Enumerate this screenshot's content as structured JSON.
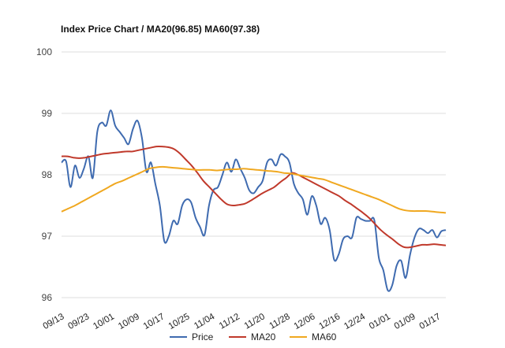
{
  "chart_data": {
    "type": "line",
    "title": "Index Price Chart / MA20(96.85) MA60(97.38)",
    "xlabel": "",
    "ylabel": "",
    "ylim": [
      96,
      100
    ],
    "yticks": [
      96,
      97,
      98,
      99,
      100
    ],
    "grid": true,
    "legend": "bottom",
    "xticks": [
      "09/13",
      "09/23",
      "10/01",
      "10/09",
      "10/17",
      "10/25",
      "11/04",
      "11/12",
      "11/20",
      "11/28",
      "12/06",
      "12/16",
      "12/24",
      "01/01",
      "01/09",
      "01/17"
    ],
    "series": [
      {
        "name": "Price",
        "color": "#3f6bb0",
        "values": [
          98.2,
          98.22,
          97.8,
          98.15,
          97.95,
          98.1,
          98.3,
          97.95,
          98.7,
          98.85,
          98.8,
          99.05,
          98.8,
          98.7,
          98.6,
          98.5,
          98.75,
          98.88,
          98.6,
          98.05,
          98.2,
          97.85,
          97.5,
          96.92,
          97.0,
          97.25,
          97.2,
          97.5,
          97.6,
          97.55,
          97.3,
          97.15,
          97.02,
          97.5,
          97.75,
          97.8,
          98.0,
          98.2,
          98.05,
          98.25,
          98.1,
          97.95,
          97.75,
          97.7,
          97.8,
          97.9,
          98.2,
          98.25,
          98.15,
          98.33,
          98.3,
          98.2,
          97.85,
          97.7,
          97.6,
          97.35,
          97.65,
          97.5,
          97.2,
          97.3,
          97.1,
          96.62,
          96.7,
          96.95,
          97.0,
          96.98,
          97.3,
          97.28,
          97.25,
          97.25,
          97.26,
          96.65,
          96.45,
          96.12,
          96.2,
          96.52,
          96.6,
          96.32,
          96.7,
          96.98,
          97.12,
          97.1,
          97.05,
          97.1,
          96.98,
          97.08,
          97.1
        ]
      },
      {
        "name": "MA20",
        "color": "#c0392b",
        "values": [
          98.3,
          98.3,
          98.28,
          98.27,
          98.28,
          98.3,
          98.32,
          98.34,
          98.35,
          98.36,
          98.37,
          98.38,
          98.38,
          98.4,
          98.42,
          98.44,
          98.46,
          98.46,
          98.45,
          98.42,
          98.35,
          98.25,
          98.15,
          98.03,
          97.9,
          97.8,
          97.7,
          97.6,
          97.52,
          97.5,
          97.51,
          97.53,
          97.58,
          97.64,
          97.7,
          97.75,
          97.8,
          97.88,
          97.95,
          98.03,
          98.0,
          97.95,
          97.9,
          97.85,
          97.8,
          97.75,
          97.7,
          97.65,
          97.58,
          97.52,
          97.45,
          97.38,
          97.3,
          97.2,
          97.1,
          97.02,
          96.95,
          96.87,
          96.82,
          96.82,
          96.84,
          96.86,
          96.86,
          96.87,
          96.86,
          96.85
        ]
      },
      {
        "name": "MA60",
        "color": "#f0a820",
        "values": [
          97.4,
          97.45,
          97.5,
          97.56,
          97.62,
          97.68,
          97.74,
          97.8,
          97.86,
          97.9,
          97.95,
          98.0,
          98.05,
          98.1,
          98.12,
          98.13,
          98.12,
          98.11,
          98.1,
          98.09,
          98.08,
          98.08,
          98.08,
          98.07,
          98.08,
          98.09,
          98.09,
          98.1,
          98.09,
          98.08,
          98.07,
          98.06,
          98.05,
          98.03,
          98.02,
          98.0,
          97.98,
          97.96,
          97.94,
          97.92,
          97.88,
          97.84,
          97.8,
          97.76,
          97.72,
          97.68,
          97.64,
          97.6,
          97.55,
          97.5,
          97.45,
          97.42,
          97.41,
          97.41,
          97.41,
          97.4,
          97.39,
          97.38
        ]
      }
    ]
  }
}
